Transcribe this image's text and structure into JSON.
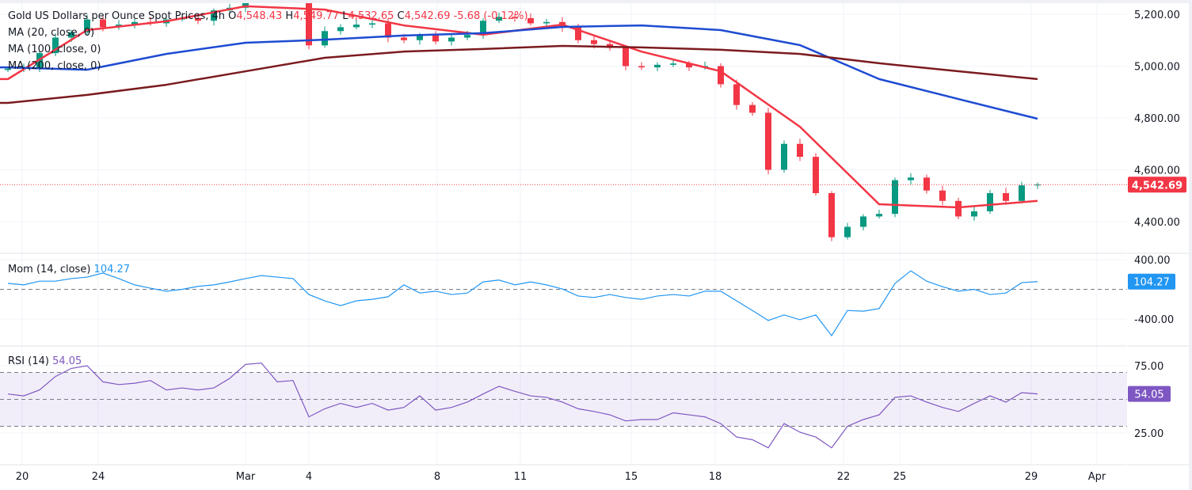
{
  "header": {
    "symbol_title": "Gold US Dollars per Ounce Spot Prices, 4h",
    "open_label": "O",
    "open": "4,548.43",
    "high_label": "H",
    "high": "4,549.77",
    "low_label": "L",
    "low": "4,532.65",
    "close_label": "C",
    "close": "4,542.69",
    "change": "-5.68 (-0.12%)",
    "ma_labels": [
      "MA (20, close, 0)",
      "MA (100, close, 0)",
      "MA (200, close, 0)"
    ]
  },
  "price_badge": "4,542.69",
  "momentum": {
    "label": "Mom (14, close)",
    "value": "104.27"
  },
  "rsi": {
    "label": "RSI (14)",
    "value": "54.05"
  },
  "colors": {
    "up": "#089981",
    "down": "#f23645",
    "ma20": "#f23645",
    "ma100": "#1e4bd2",
    "ma200": "#7b1b1f",
    "mom": "#2196f3",
    "rsi": "#7e57c2"
  },
  "chart_data": [
    {
      "type": "candlestick",
      "title": "Gold US Dollars per Ounce Spot Prices, 4h",
      "ylim": [
        4278,
        5255
      ],
      "y_ticks": [
        "5,200.00",
        "5,000.00",
        "4,800.00",
        "4,600.00",
        "4,400.00"
      ],
      "y_tick_values": [
        5200,
        5000,
        4800,
        4600,
        4400
      ],
      "close": [
        4990,
        4995,
        5050,
        5110,
        5130,
        5180,
        5150,
        5160,
        5170,
        5165,
        5180,
        5185,
        5175,
        5215,
        5225,
        5280,
        5300,
        5290,
        5270,
        5080,
        5135,
        5150,
        5160,
        5165,
        5110,
        5100,
        5120,
        5095,
        5110,
        5120,
        5175,
        5190,
        5185,
        5165,
        5170,
        5150,
        5100,
        5085,
        5070,
        5000,
        4995,
        5005,
        5010,
        4995,
        5000,
        4930,
        4850,
        4820,
        4600,
        4700,
        4650,
        4510,
        4340,
        4380,
        4420,
        4430,
        4560,
        4570,
        4520,
        4480,
        4420,
        4440,
        4510,
        4480,
        4540,
        4542.69
      ],
      "last_price": 4542.69,
      "moving_averages": [
        {
          "name": "MA (20, close, 0)",
          "points": [
            [
              0,
              4950
            ],
            [
              5,
              5139
            ],
            [
              10,
              5173
            ],
            [
              15,
              5231
            ],
            [
              20,
              5218
            ],
            [
              25,
              5157
            ],
            [
              30,
              5121
            ],
            [
              35,
              5160
            ],
            [
              40,
              5056
            ],
            [
              45,
              4980
            ],
            [
              50,
              4766
            ],
            [
              55,
              4467
            ],
            [
              60,
              4455
            ],
            [
              65,
              4480
            ]
          ]
        },
        {
          "name": "MA (100, close, 0)",
          "points": [
            [
              0,
              4995
            ],
            [
              5,
              4986
            ],
            [
              10,
              5047
            ],
            [
              15,
              5090
            ],
            [
              20,
              5102
            ],
            [
              25,
              5118
            ],
            [
              30,
              5127
            ],
            [
              35,
              5151
            ],
            [
              40,
              5157
            ],
            [
              45,
              5139
            ],
            [
              50,
              5081
            ],
            [
              55,
              4950
            ],
            [
              60,
              4873
            ],
            [
              65,
              4797
            ]
          ]
        },
        {
          "name": "MA (200, close, 0)",
          "points": [
            [
              0,
              4858
            ],
            [
              5,
              4889
            ],
            [
              10,
              4928
            ],
            [
              15,
              4980
            ],
            [
              20,
              5032
            ],
            [
              25,
              5056
            ],
            [
              30,
              5066
            ],
            [
              35,
              5078
            ],
            [
              40,
              5072
            ],
            [
              45,
              5063
            ],
            [
              50,
              5047
            ],
            [
              55,
              5011
            ],
            [
              60,
              4980
            ],
            [
              65,
              4950
            ]
          ]
        }
      ],
      "x_ticks": [
        {
          "label": "20",
          "at": 0.9
        },
        {
          "label": "24",
          "at": 5.7
        },
        {
          "label": "Mar",
          "at": 15
        },
        {
          "label": "4",
          "at": 19
        },
        {
          "label": "8",
          "at": 27.1
        },
        {
          "label": "11",
          "at": 32.35
        },
        {
          "label": "15",
          "at": 39.35
        },
        {
          "label": "18",
          "at": 44.65
        },
        {
          "label": "22",
          "at": 52.75
        },
        {
          "label": "25",
          "at": 56.3
        },
        {
          "label": "29",
          "at": 64.6
        },
        {
          "label": "Apr",
          "at": 68.75
        }
      ]
    },
    {
      "type": "line",
      "title": "Mom (14, close)",
      "ylim": [
        -550,
        400
      ],
      "y_ticks": [
        "400.00",
        "-400.00"
      ],
      "y_tick_values": [
        400,
        -400
      ],
      "zero_line": 0,
      "values": [
        80,
        60,
        110,
        110,
        145,
        165,
        220,
        145,
        60,
        15,
        -25,
        0,
        40,
        60,
        100,
        145,
        185,
        165,
        145,
        -70,
        -155,
        -220,
        -155,
        -135,
        -100,
        60,
        -50,
        -25,
        -70,
        -50,
        100,
        125,
        60,
        100,
        60,
        5,
        -90,
        -110,
        -70,
        -110,
        -135,
        -90,
        -70,
        -90,
        -25,
        -25,
        -155,
        -285,
        -420,
        -345,
        -410,
        -345,
        -625,
        -285,
        -295,
        -260,
        80,
        250,
        110,
        35,
        -25,
        0,
        -70,
        -50,
        90,
        104.27
      ]
    },
    {
      "type": "line",
      "title": "RSI (14)",
      "ylim": [
        10,
        90
      ],
      "y_ticks": [
        "75.00",
        "25.00"
      ],
      "y_tick_values": [
        75,
        25
      ],
      "bands": [
        30,
        50,
        70
      ],
      "values": [
        54,
        52.6,
        57,
        67,
        73,
        75,
        63,
        61,
        62,
        64,
        57,
        58.5,
        57,
        58.5,
        65.6,
        76,
        77,
        63,
        64,
        37,
        43,
        47,
        44,
        47,
        42,
        44,
        52.6,
        42,
        44,
        48,
        54,
        59.7,
        56,
        52.6,
        51.5,
        48,
        43,
        41,
        38.5,
        34,
        35,
        35,
        40,
        38.5,
        37,
        32,
        22,
        20,
        14,
        32,
        25.6,
        22,
        14,
        30,
        35,
        38.5,
        51.5,
        52.6,
        48,
        44,
        41,
        47,
        52.6,
        48,
        55,
        54.05
      ]
    }
  ]
}
